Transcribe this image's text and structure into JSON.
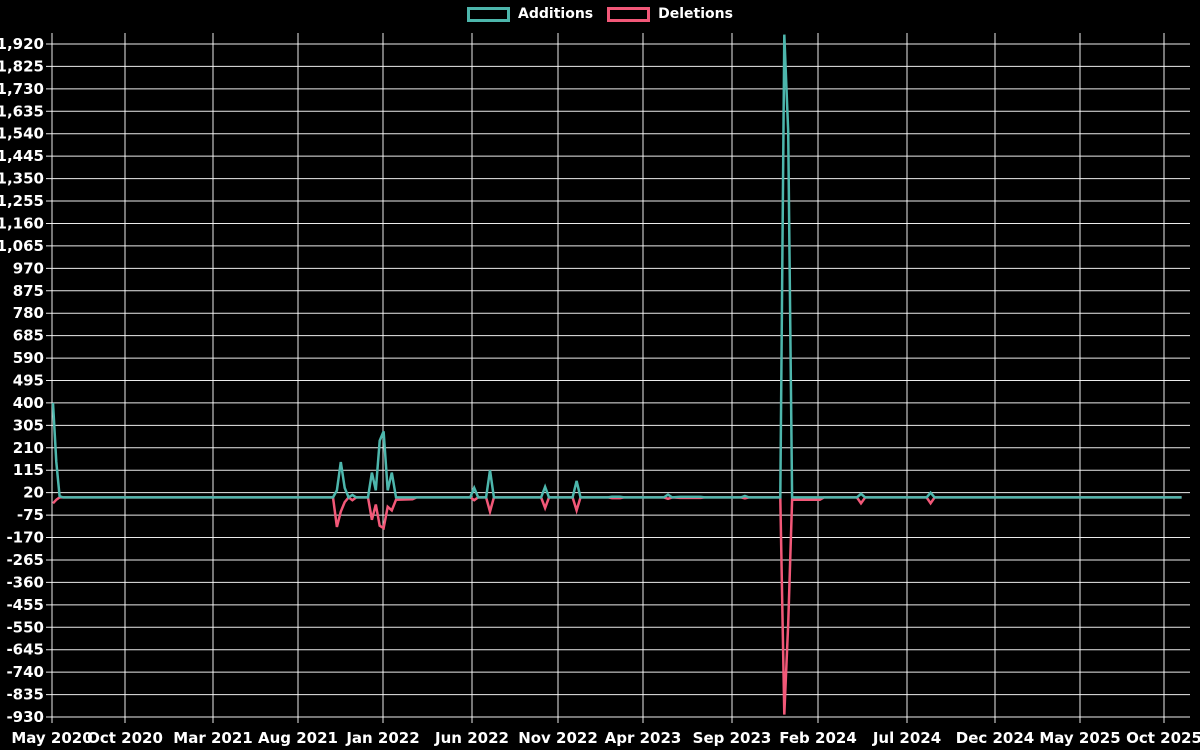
{
  "colors": {
    "background": "#000000",
    "grid": "#ffffff",
    "text": "#ffffff",
    "additions": "#4db6ac",
    "deletions": "#f25878"
  },
  "chart_data": {
    "type": "line",
    "title": "",
    "legend_position": "top-center",
    "grid": true,
    "x_axis": {
      "tick_labels": [
        "May 2020",
        "Oct 2020",
        "Mar 2021",
        "Aug 2021",
        "Jan 2022",
        "Jun 2022",
        "Nov 2022",
        "Apr 2023",
        "Sep 2023",
        "Feb 2024",
        "Jul 2024",
        "Dec 2024",
        "May 2025",
        "Oct 2025"
      ]
    },
    "y_axis": {
      "min": -930,
      "max": 1920,
      "step": 95,
      "tick_labels": [
        "1,920",
        "1,825",
        "1,730",
        "1,635",
        "1,540",
        "1,445",
        "1,350",
        "1,255",
        "1,160",
        "1,065",
        "970",
        "875",
        "780",
        "685",
        "590",
        "495",
        "400",
        "305",
        "210",
        "115",
        "20",
        "-75",
        "-170",
        "-265",
        "-360",
        "-455",
        "-550",
        "-645",
        "-740",
        "-835",
        "-930"
      ]
    },
    "series": [
      {
        "name": "Additions",
        "color": "#4db6ac",
        "points": [
          [
            "2020-05-03",
            400
          ],
          [
            "2020-05-10",
            150
          ],
          [
            "2020-05-17",
            5
          ],
          [
            "2020-05-24",
            0
          ],
          [
            "2020-09-06",
            0
          ],
          [
            "2021-01-03",
            0
          ],
          [
            "2021-05-02",
            0
          ],
          [
            "2021-09-05",
            0
          ],
          [
            "2021-10-03",
            0
          ],
          [
            "2021-10-10",
            30
          ],
          [
            "2021-10-17",
            150
          ],
          [
            "2021-10-24",
            40
          ],
          [
            "2021-10-31",
            0
          ],
          [
            "2021-11-07",
            10
          ],
          [
            "2021-11-14",
            0
          ],
          [
            "2021-12-05",
            0
          ],
          [
            "2021-12-12",
            105
          ],
          [
            "2021-12-19",
            30
          ],
          [
            "2021-12-26",
            240
          ],
          [
            "2022-01-02",
            280
          ],
          [
            "2022-01-09",
            30
          ],
          [
            "2022-01-16",
            105
          ],
          [
            "2022-01-23",
            0
          ],
          [
            "2022-03-06",
            0
          ],
          [
            "2022-05-29",
            0
          ],
          [
            "2022-06-05",
            40
          ],
          [
            "2022-06-12",
            0
          ],
          [
            "2022-06-26",
            0
          ],
          [
            "2022-07-03",
            115
          ],
          [
            "2022-07-10",
            0
          ],
          [
            "2022-10-02",
            0
          ],
          [
            "2022-10-09",
            45
          ],
          [
            "2022-10-16",
            0
          ],
          [
            "2022-11-27",
            0
          ],
          [
            "2022-12-04",
            70
          ],
          [
            "2022-12-11",
            0
          ],
          [
            "2023-01-29",
            0
          ],
          [
            "2023-02-05",
            3
          ],
          [
            "2023-02-19",
            3
          ],
          [
            "2023-02-26",
            0
          ],
          [
            "2023-05-07",
            0
          ],
          [
            "2023-05-14",
            12
          ],
          [
            "2023-05-21",
            0
          ],
          [
            "2023-06-04",
            2
          ],
          [
            "2023-07-09",
            2
          ],
          [
            "2023-07-16",
            0
          ],
          [
            "2023-09-17",
            0
          ],
          [
            "2023-09-24",
            6
          ],
          [
            "2023-10-01",
            0
          ],
          [
            "2023-11-26",
            0
          ],
          [
            "2023-12-03",
            1960
          ],
          [
            "2023-12-10",
            1550
          ],
          [
            "2023-12-17",
            0
          ],
          [
            "2024-02-11",
            0
          ],
          [
            "2024-04-07",
            0
          ],
          [
            "2024-04-14",
            15
          ],
          [
            "2024-04-21",
            0
          ],
          [
            "2024-08-04",
            0
          ],
          [
            "2024-08-11",
            20
          ],
          [
            "2024-08-18",
            0
          ],
          [
            "2024-12-01",
            0
          ],
          [
            "2025-04-06",
            0
          ],
          [
            "2025-08-03",
            0
          ],
          [
            "2025-11-02",
            0
          ]
        ]
      },
      {
        "name": "Deletions",
        "color": "#f25878",
        "points": [
          [
            "2020-05-03",
            -25
          ],
          [
            "2020-05-10",
            -10
          ],
          [
            "2020-05-17",
            0
          ],
          [
            "2020-05-24",
            0
          ],
          [
            "2020-09-06",
            0
          ],
          [
            "2021-01-03",
            0
          ],
          [
            "2021-05-02",
            0
          ],
          [
            "2021-09-05",
            0
          ],
          [
            "2021-10-03",
            0
          ],
          [
            "2021-10-10",
            -125
          ],
          [
            "2021-10-17",
            -60
          ],
          [
            "2021-10-24",
            -20
          ],
          [
            "2021-10-31",
            0
          ],
          [
            "2021-11-07",
            -12
          ],
          [
            "2021-11-14",
            0
          ],
          [
            "2021-12-05",
            0
          ],
          [
            "2021-12-12",
            -95
          ],
          [
            "2021-12-19",
            -30
          ],
          [
            "2021-12-26",
            -120
          ],
          [
            "2022-01-02",
            -130
          ],
          [
            "2022-01-09",
            -40
          ],
          [
            "2022-01-16",
            -55
          ],
          [
            "2022-01-23",
            -10
          ],
          [
            "2022-02-20",
            -8
          ],
          [
            "2022-02-27",
            0
          ],
          [
            "2022-05-29",
            0
          ],
          [
            "2022-06-05",
            -12
          ],
          [
            "2022-06-12",
            0
          ],
          [
            "2022-06-26",
            0
          ],
          [
            "2022-07-03",
            -60
          ],
          [
            "2022-07-10",
            0
          ],
          [
            "2022-10-02",
            0
          ],
          [
            "2022-10-09",
            -45
          ],
          [
            "2022-10-16",
            0
          ],
          [
            "2022-11-27",
            0
          ],
          [
            "2022-12-04",
            -55
          ],
          [
            "2022-12-11",
            0
          ],
          [
            "2023-01-29",
            0
          ],
          [
            "2023-02-05",
            -3
          ],
          [
            "2023-02-19",
            -3
          ],
          [
            "2023-02-26",
            0
          ],
          [
            "2023-05-07",
            0
          ],
          [
            "2023-05-14",
            -6
          ],
          [
            "2023-05-21",
            0
          ],
          [
            "2023-06-04",
            -2
          ],
          [
            "2023-07-09",
            -2
          ],
          [
            "2023-07-16",
            0
          ],
          [
            "2023-09-17",
            0
          ],
          [
            "2023-09-24",
            -4
          ],
          [
            "2023-10-01",
            0
          ],
          [
            "2023-11-26",
            0
          ],
          [
            "2023-12-03",
            -920
          ],
          [
            "2023-12-10",
            -535
          ],
          [
            "2023-12-17",
            -10
          ],
          [
            "2024-02-04",
            -10
          ],
          [
            "2024-02-11",
            0
          ],
          [
            "2024-04-07",
            0
          ],
          [
            "2024-04-14",
            -25
          ],
          [
            "2024-04-21",
            0
          ],
          [
            "2024-08-04",
            0
          ],
          [
            "2024-08-11",
            -25
          ],
          [
            "2024-08-18",
            0
          ],
          [
            "2024-12-01",
            0
          ],
          [
            "2025-04-06",
            0
          ],
          [
            "2025-08-03",
            0
          ],
          [
            "2025-11-02",
            0
          ]
        ]
      }
    ]
  }
}
